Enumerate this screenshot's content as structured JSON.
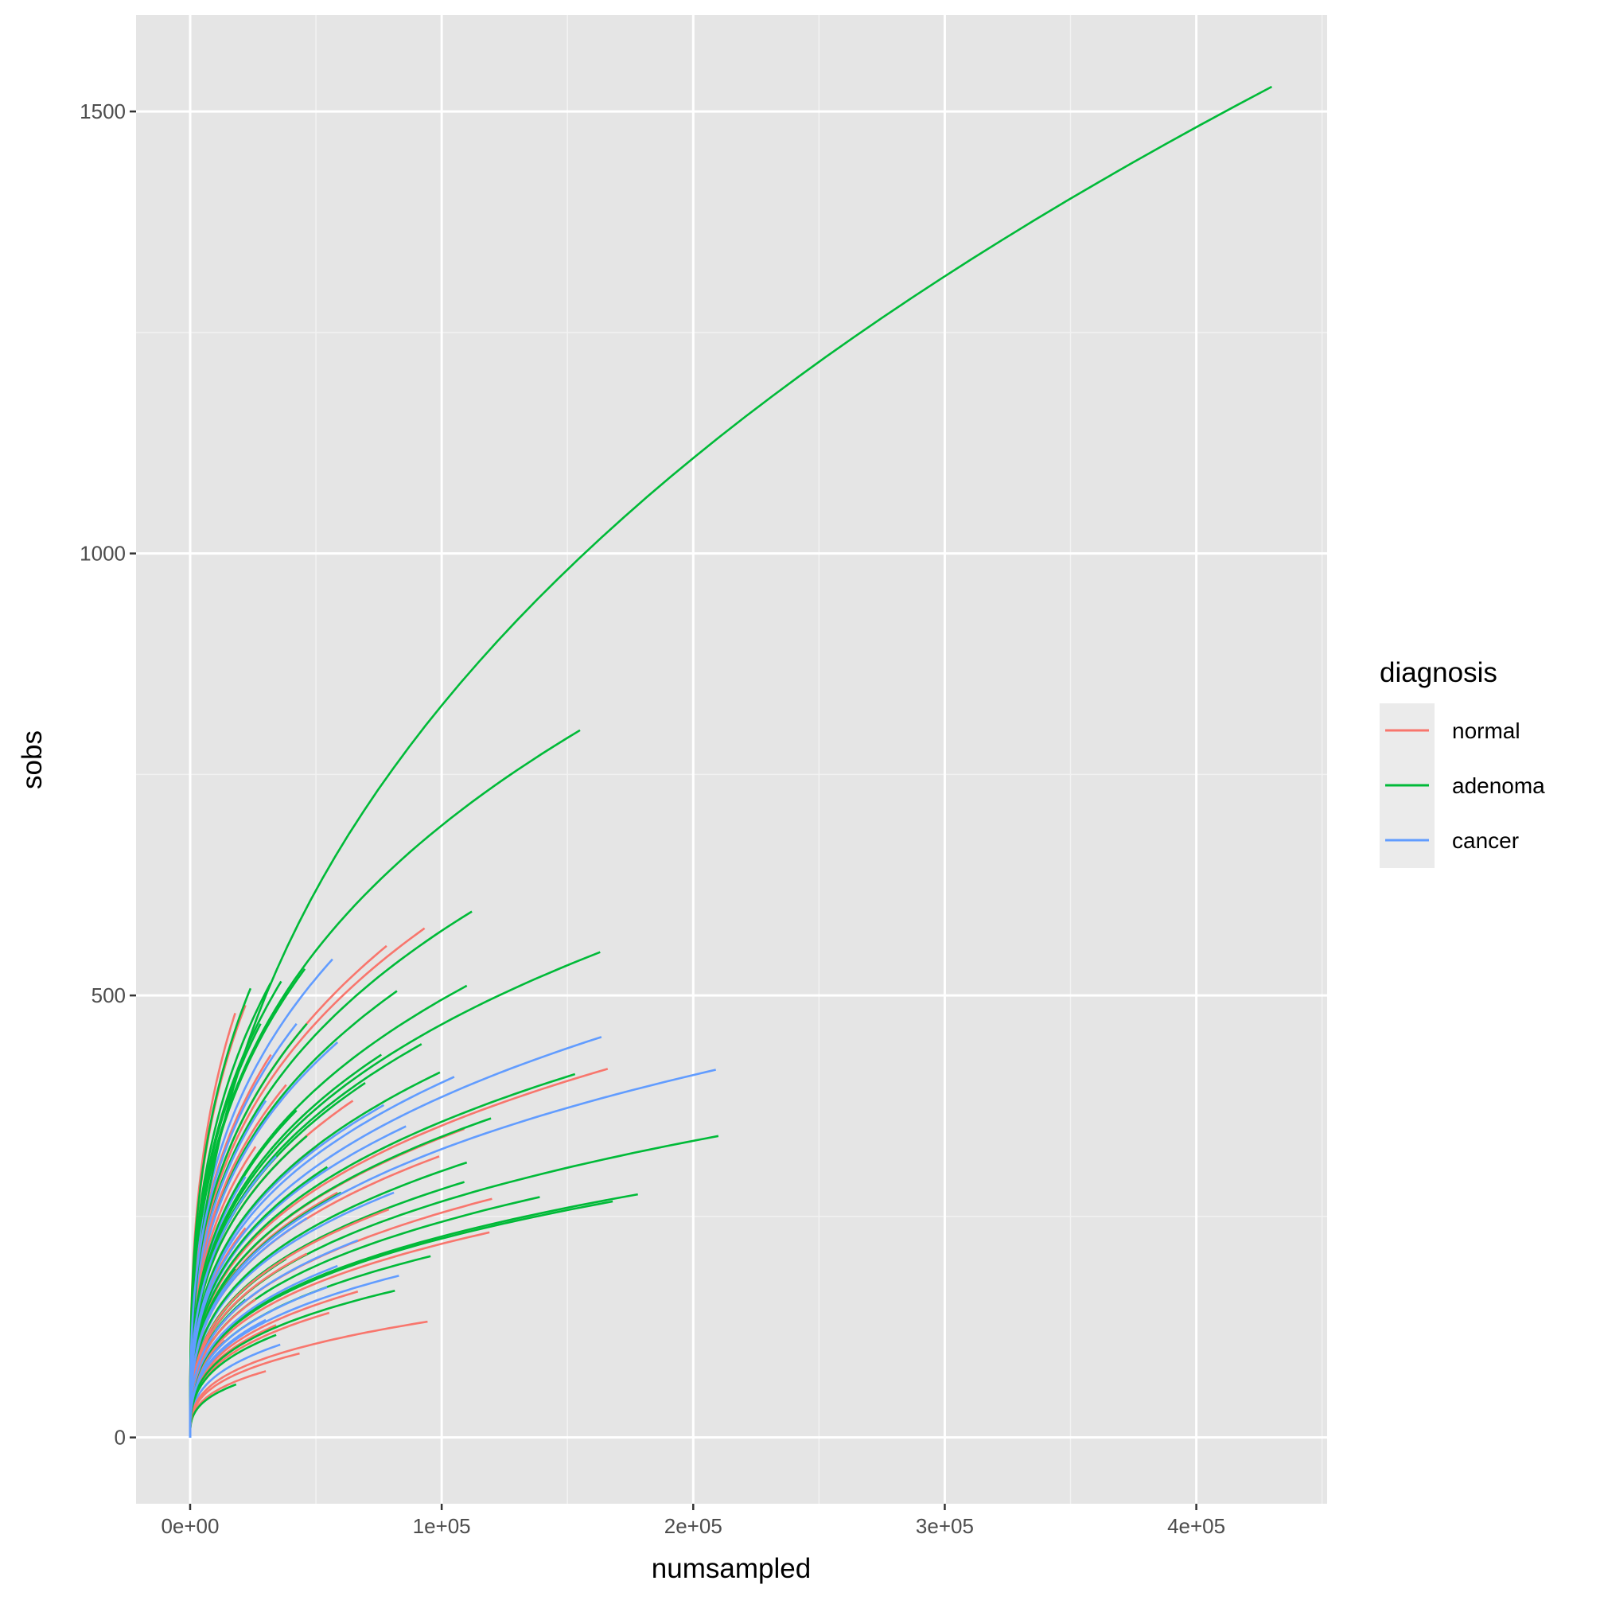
{
  "chart_data": {
    "type": "line",
    "title": "",
    "xlabel": "numsampled",
    "ylabel": "sobs",
    "xlim": [
      -21500,
      452000
    ],
    "ylim": [
      -75,
      1609
    ],
    "x_ticks": [
      0,
      100000,
      200000,
      300000,
      400000
    ],
    "x_tick_labels": [
      "0e+00",
      "1e+05",
      "2e+05",
      "3e+05",
      "4e+05"
    ],
    "y_ticks": [
      0,
      500,
      1000,
      1500
    ],
    "y_tick_labels": [
      "0",
      "500",
      "1000",
      "1500"
    ],
    "grid": true,
    "legend": {
      "title": "diagnosis",
      "placement": "right",
      "entries": [
        "normal",
        "adenoma",
        "cancer"
      ]
    },
    "colors": {
      "normal": "#F8766D",
      "adenoma": "#00BA38",
      "cancer": "#619CFF"
    },
    "note_curves": "each curve starts at (0,0); values are approximate curve end points [numsampled, sobs]",
    "series": [
      {
        "name": "normal",
        "curve_endpoints": [
          [
            166000,
            417
          ],
          [
            120000,
            270
          ],
          [
            119000,
            232
          ],
          [
            94400,
            131
          ],
          [
            43500,
            95
          ],
          [
            93200,
            576
          ],
          [
            78100,
            556
          ],
          [
            22000,
            489
          ],
          [
            109000,
            349
          ],
          [
            99000,
            318
          ],
          [
            79000,
            258
          ],
          [
            66700,
            165
          ],
          [
            55300,
            141
          ],
          [
            64700,
            381
          ],
          [
            58600,
            277
          ],
          [
            34200,
            127
          ],
          [
            30100,
            75
          ],
          [
            17900,
            480
          ],
          [
            32100,
            433
          ],
          [
            38200,
            399
          ],
          [
            26000,
            329
          ],
          [
            22000,
            237
          ],
          [
            26000,
            156
          ],
          [
            46400,
            208
          ],
          [
            50500,
            329
          ],
          [
            13800,
            110
          ]
        ]
      },
      {
        "name": "adenoma",
        "curve_endpoints": [
          [
            430000,
            1528
          ],
          [
            155000,
            800
          ],
          [
            112000,
            595
          ],
          [
            163000,
            549
          ],
          [
            153000,
            411
          ],
          [
            210000,
            341
          ],
          [
            178000,
            275
          ],
          [
            168000,
            267
          ],
          [
            139000,
            272
          ],
          [
            95600,
            205
          ],
          [
            81400,
            166
          ],
          [
            18300,
            60
          ],
          [
            45600,
            530
          ],
          [
            82200,
            505
          ],
          [
            110000,
            511
          ],
          [
            92000,
            445
          ],
          [
            119600,
            361
          ],
          [
            110000,
            311
          ],
          [
            109000,
            289
          ],
          [
            60000,
            277
          ],
          [
            76000,
            433
          ],
          [
            69600,
            401
          ],
          [
            46400,
            341
          ],
          [
            34200,
            116
          ],
          [
            99300,
            413
          ],
          [
            24000,
            508
          ],
          [
            32000,
            514
          ],
          [
            36200,
            516
          ],
          [
            28000,
            468
          ],
          [
            46400,
            468
          ],
          [
            42300,
            370
          ],
          [
            34200,
            260
          ],
          [
            17900,
            191
          ],
          [
            38200,
            202
          ],
          [
            54500,
            306
          ],
          [
            22000,
            156
          ]
        ]
      },
      {
        "name": "cancer",
        "curve_endpoints": [
          [
            163500,
            453
          ],
          [
            209000,
            416
          ],
          [
            83000,
            183
          ],
          [
            35800,
            105
          ],
          [
            56600,
            541
          ],
          [
            105000,
            408
          ],
          [
            85800,
            352
          ],
          [
            81000,
            277
          ],
          [
            66700,
            223
          ],
          [
            58600,
            194
          ],
          [
            58600,
            447
          ],
          [
            54500,
            170
          ],
          [
            77000,
            376
          ],
          [
            42300,
            468
          ],
          [
            30100,
            381
          ],
          [
            22000,
            295
          ],
          [
            46400,
            248
          ],
          [
            30100,
            133
          ],
          [
            34200,
            318
          ]
        ]
      }
    ]
  }
}
